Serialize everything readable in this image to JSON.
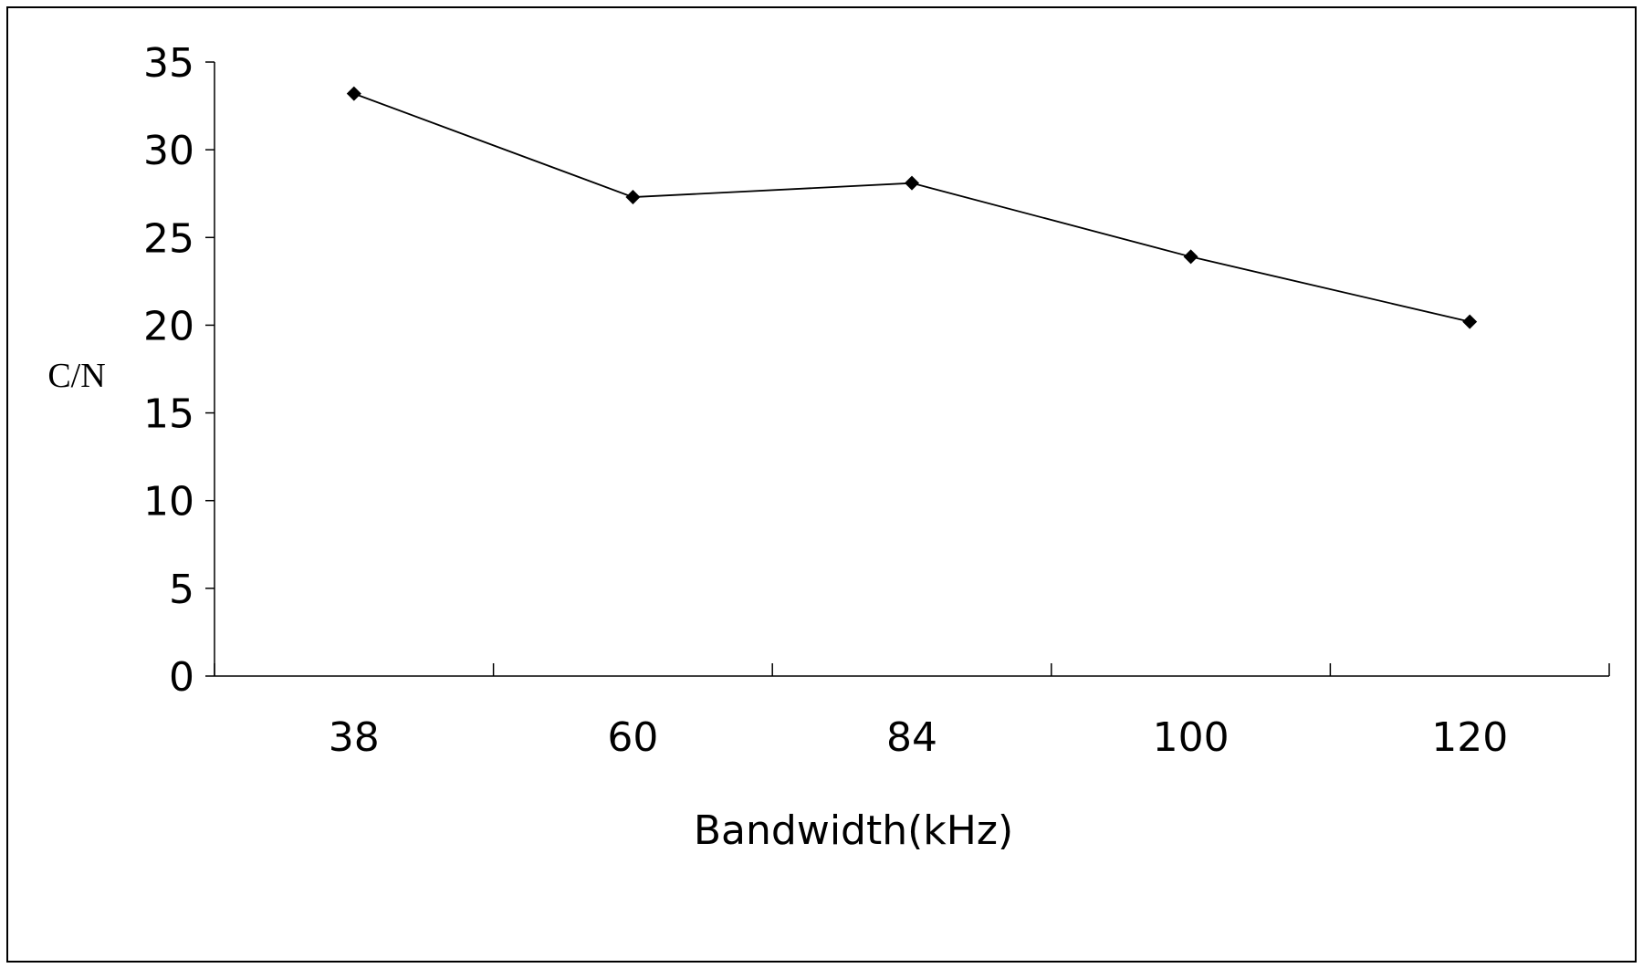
{
  "chart_data": {
    "type": "line",
    "title": "",
    "xlabel": "Bandwidth(kHz)",
    "ylabel": "C/N",
    "categories": [
      "38",
      "60",
      "84",
      "100",
      "120"
    ],
    "series": [
      {
        "values": [
          33.2,
          27.3,
          28.1,
          23.9,
          20.2
        ]
      }
    ],
    "ylim": [
      0,
      35
    ],
    "yticks": [
      "0",
      "5",
      "10",
      "15",
      "20",
      "25",
      "30",
      "35"
    ],
    "marker": "diamond",
    "line_color": "#000000",
    "grid": false,
    "legend": "none"
  }
}
